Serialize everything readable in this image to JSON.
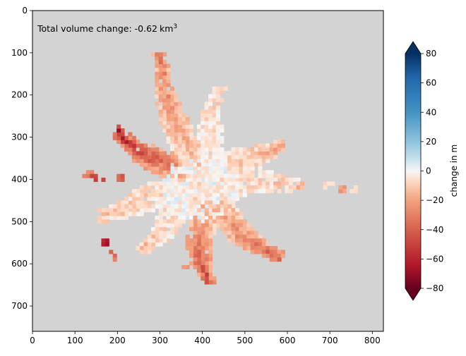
{
  "chart_data": {
    "type": "heatmap",
    "annotation": {
      "prefix": "Total volume change: ",
      "value": "-0.62",
      "unit": "km",
      "exponent": "3"
    },
    "x_axis": {
      "range": [
        0,
        826
      ],
      "ticks": [
        0,
        100,
        200,
        300,
        400,
        500,
        600,
        700,
        800
      ]
    },
    "y_axis": {
      "range": [
        760,
        0
      ],
      "inverted": true,
      "ticks": [
        0,
        100,
        200,
        300,
        400,
        500,
        600,
        700
      ]
    },
    "colorbar": {
      "label": "change in m",
      "range": [
        -80,
        80
      ],
      "extend": "both",
      "colormap": "RdBu",
      "ticks": [
        80,
        60,
        40,
        20,
        0,
        -20,
        -40,
        -60,
        -80
      ]
    },
    "background_color": "#d3d3d3",
    "glacier_center": [
      390,
      420
    ],
    "glacier_arms": [
      {
        "tip": [
          290,
          100
        ],
        "mean_change": -25
      },
      {
        "tip": [
          440,
          180
        ],
        "mean_change": -8
      },
      {
        "tip": [
          580,
          305
        ],
        "mean_change": -15
      },
      {
        "tip": [
          630,
          400
        ],
        "mean_change": -10
      },
      {
        "tip": [
          570,
          590
        ],
        "mean_change": -30
      },
      {
        "tip": [
          400,
          640
        ],
        "mean_change": -35
      },
      {
        "tip": [
          245,
          560
        ],
        "mean_change": -10
      },
      {
        "tip": [
          150,
          470
        ],
        "mean_change": -12
      },
      {
        "tip": [
          195,
          280
        ],
        "mean_change": -45
      }
    ]
  }
}
